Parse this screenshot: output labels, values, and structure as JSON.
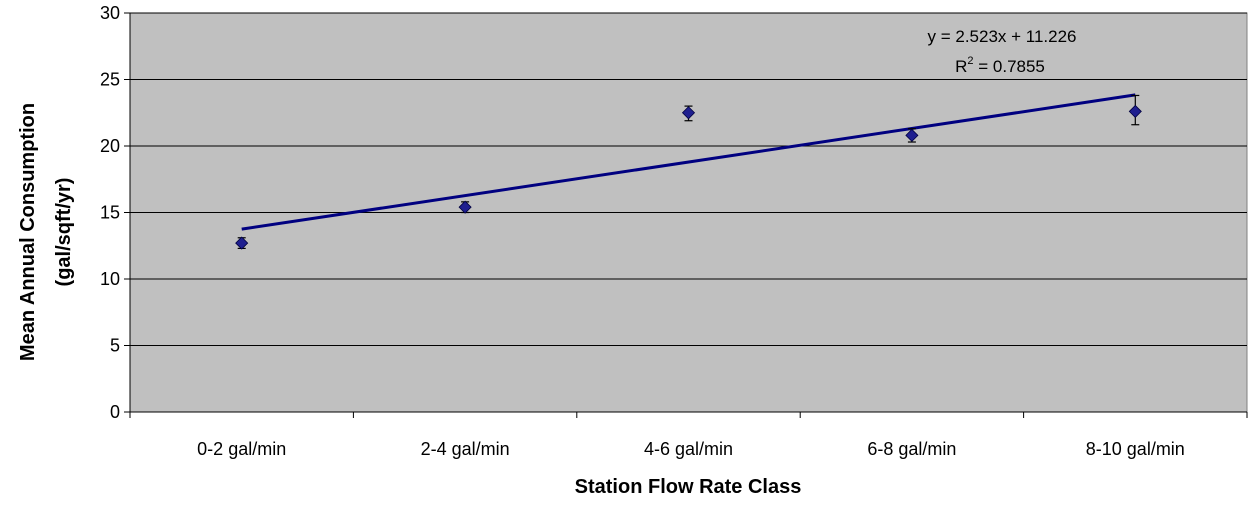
{
  "chart_data": {
    "type": "scatter",
    "title": "",
    "xlabel": "Station Flow Rate Class",
    "ylabel_lines": [
      "Mean Annual Consumption",
      "(gal/sqft/yr)"
    ],
    "categories": [
      "0-2 gal/min",
      "2-4 gal/min",
      "4-6 gal/min",
      "6-8 gal/min",
      "8-10 gal/min"
    ],
    "ylim": [
      0,
      30
    ],
    "yticks": [
      "0",
      "5",
      "10",
      "15",
      "20",
      "25",
      "30"
    ],
    "grid": true,
    "series": [
      {
        "values": [
          12.7,
          15.4,
          22.5,
          20.8,
          22.6
        ],
        "error_low": [
          12.3,
          15.0,
          21.9,
          20.3,
          21.6
        ],
        "error_high": [
          13.1,
          15.8,
          23.0,
          21.3,
          23.8
        ],
        "marker": "diamond",
        "color": "#1F1F8F"
      }
    ],
    "trendline": {
      "slope": 2.523,
      "intercept": 11.226,
      "equation": "y = 2.523x + 11.226",
      "r2_prefix": "R",
      "r2_exponent": "2",
      "r2_value": " = 0.7855",
      "color": "#000080"
    },
    "plot_background": "#C0C0C0",
    "gridline_color": "#000000"
  }
}
